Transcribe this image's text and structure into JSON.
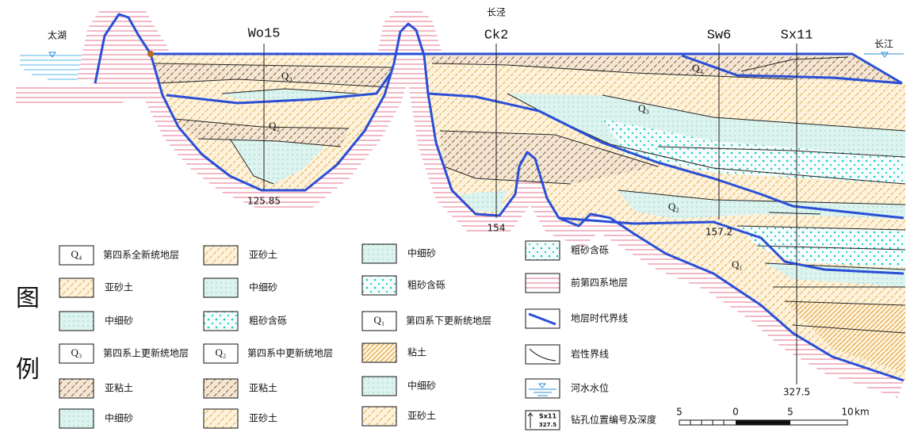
{
  "section": {
    "places": [
      "太湖",
      "长泾",
      "长江"
    ],
    "boreholes": [
      {
        "name": "Wo15",
        "depth": "125.85"
      },
      {
        "name": "Ck2",
        "depth": "154"
      },
      {
        "name": "Sw6",
        "depth": "157.2"
      },
      {
        "name": "Sx11",
        "depth": "327.5"
      }
    ],
    "strata_labels": [
      "Q₃",
      "Q₂",
      "Q₄",
      "Q₃",
      "Q₂",
      "Q₁"
    ]
  },
  "legend": {
    "title": [
      "图",
      "例"
    ],
    "items": [
      {
        "symbol": "Q₄",
        "label": "第四系全新统地层"
      },
      {
        "label": "亚砂土"
      },
      {
        "label": "中细砂"
      },
      {
        "symbol": "Q₃",
        "label": "第四系上更新统地层"
      },
      {
        "label": "亚粘土"
      },
      {
        "label": "中细砂"
      },
      {
        "label": "亚砂土"
      },
      {
        "label": "中细砂"
      },
      {
        "label": "粗砂含砾"
      },
      {
        "symbol": "Q₂",
        "label": "第四系中更新统地层"
      },
      {
        "label": "亚粘土"
      },
      {
        "label": "亚砂土"
      },
      {
        "label": "中细砂"
      },
      {
        "label": "粗砂含砾"
      },
      {
        "symbol": "Q₁",
        "label": "第四系下更新统地层"
      },
      {
        "label": "粘土"
      },
      {
        "label": "中细砂"
      },
      {
        "label": "亚砂土"
      },
      {
        "label": "粗砂含砾"
      },
      {
        "label": "前第四系地层"
      },
      {
        "label": "地层时代界线"
      },
      {
        "label": "岩性界线"
      },
      {
        "label": "河水水位"
      },
      {
        "symbol": "Sx11",
        "depth": "327.5",
        "label": "钻孔位置编号及深度"
      }
    ]
  },
  "scale": {
    "ticks": [
      "5",
      "0",
      "5",
      "10"
    ],
    "unit": "km"
  }
}
